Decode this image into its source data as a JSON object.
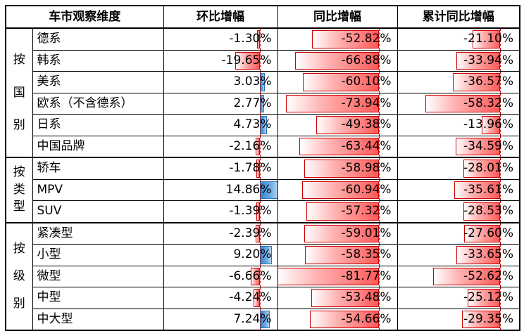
{
  "chart_data": {
    "type": "table",
    "title": "车市观察数据表",
    "columns": [
      "车市观察维度",
      "环比增幅",
      "同比增幅",
      "累计同比增幅"
    ],
    "value_unit": "%",
    "row_groups": [
      {
        "label": "按国别",
        "rows": [
          {
            "name": "德系",
            "mom": -1.3,
            "yoy": -52.82,
            "cum": -21.1
          },
          {
            "name": "韩系",
            "mom": -19.65,
            "yoy": -66.88,
            "cum": -33.94
          },
          {
            "name": "美系",
            "mom": 3.03,
            "yoy": -60.1,
            "cum": -36.57
          },
          {
            "name": "欧系（不含德系）",
            "mom": 2.77,
            "yoy": -73.94,
            "cum": -58.32
          },
          {
            "name": "日系",
            "mom": 4.73,
            "yoy": -49.38,
            "cum": -13.96
          },
          {
            "name": "中国品牌",
            "mom": -2.16,
            "yoy": -63.44,
            "cum": -34.59
          }
        ]
      },
      {
        "label": "按类型",
        "rows": [
          {
            "name": "轿车",
            "mom": -1.78,
            "yoy": -58.98,
            "cum": -28.01
          },
          {
            "name": "MPV",
            "mom": 14.86,
            "yoy": -60.94,
            "cum": -35.61
          },
          {
            "name": "SUV",
            "mom": -1.39,
            "yoy": -57.32,
            "cum": -28.53
          }
        ]
      },
      {
        "label": "按级别",
        "rows": [
          {
            "name": "紧凑型",
            "mom": -2.39,
            "yoy": -59.01,
            "cum": -27.6
          },
          {
            "name": "小型",
            "mom": 9.2,
            "yoy": -58.35,
            "cum": -33.65
          },
          {
            "name": "微型",
            "mom": -6.66,
            "yoy": -81.77,
            "cum": -52.62
          },
          {
            "name": "中型",
            "mom": -4.24,
            "yoy": -53.48,
            "cum": -25.12
          },
          {
            "name": "中大型",
            "mom": 7.24,
            "yoy": -54.66,
            "cum": -29.35
          }
        ]
      }
    ],
    "databar": {
      "scale_min": -81.77,
      "scale_max": 14.86,
      "negative_border": "#d00000",
      "negative_fill": "#ff5a5a",
      "positive_border": "#2e75b6",
      "positive_fill": "#2f86cc",
      "axis_color": "#c00000",
      "axis_style": "dashed"
    }
  }
}
